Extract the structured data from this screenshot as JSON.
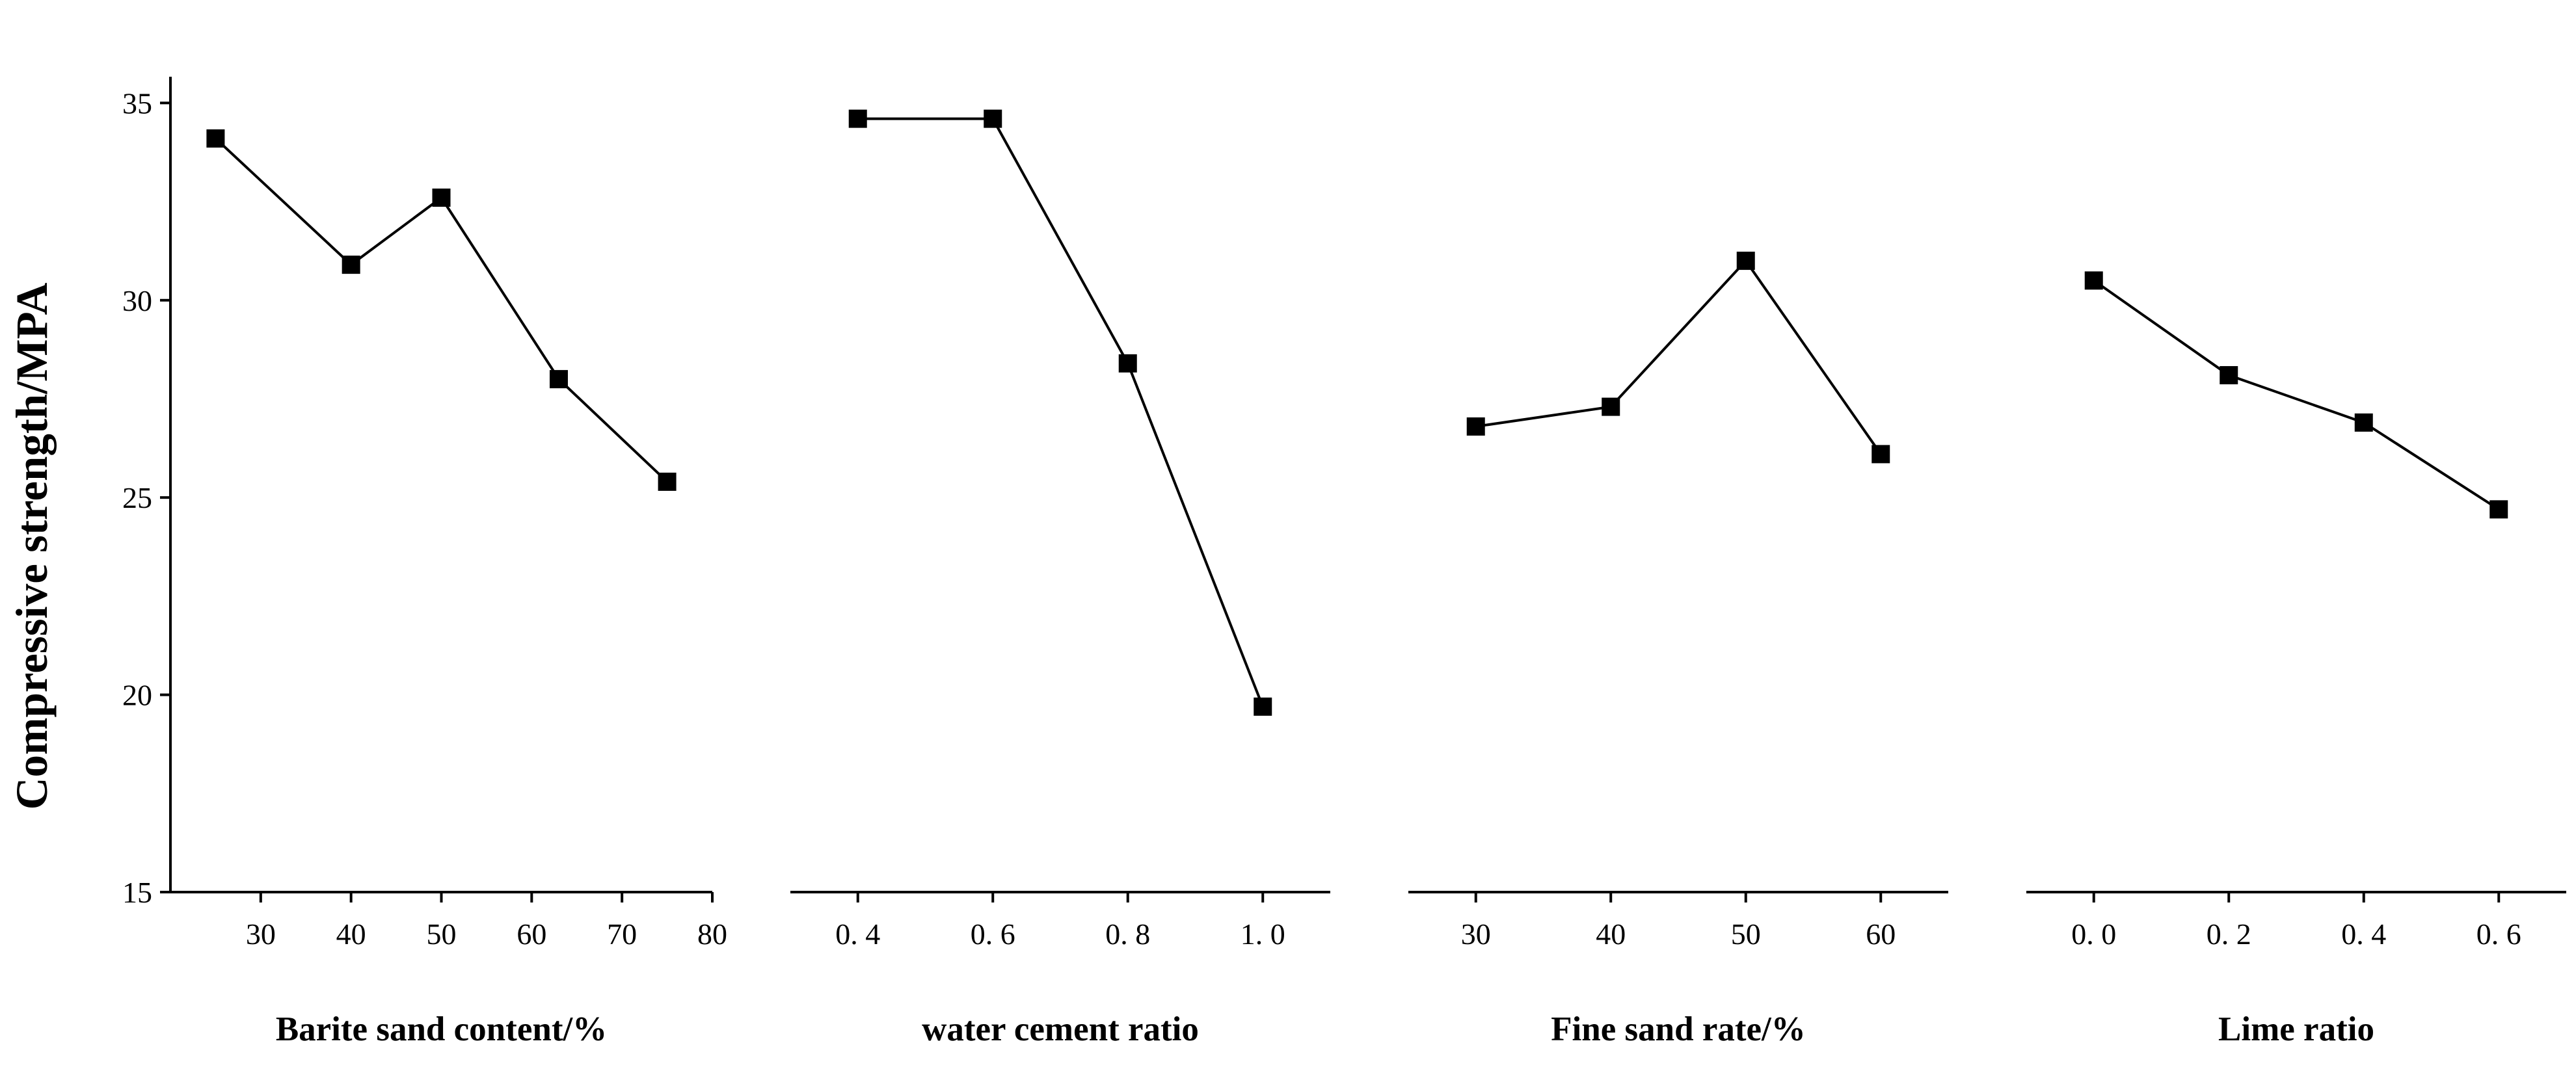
{
  "chart_data": [
    {
      "type": "line",
      "title": "",
      "xlabel": "Barite sand content/%",
      "ylabel": "Compressive strength/MPA",
      "x": [
        25,
        40,
        50,
        63,
        75
      ],
      "values": [
        34.1,
        30.9,
        32.6,
        28.0,
        25.4
      ],
      "xticks": [
        30,
        40,
        50,
        60,
        70,
        80
      ],
      "xtick_labels": [
        "30",
        "40",
        "50",
        "60",
        "70",
        "80"
      ],
      "xlim": [
        20,
        80
      ],
      "yticks": [
        15,
        20,
        25,
        30,
        35
      ],
      "ytick_labels": [
        "15",
        "20",
        "25",
        "30",
        "35"
      ],
      "ylim": [
        15,
        35.5
      ],
      "grid": false,
      "marker": "square"
    },
    {
      "type": "line",
      "title": "",
      "xlabel": "water cement ratio",
      "ylabel": "Compressive strength/MPA",
      "x": [
        0.4,
        0.6,
        0.8,
        1.0
      ],
      "values": [
        34.6,
        34.6,
        28.4,
        19.7
      ],
      "xticks": [
        0.4,
        0.6,
        0.8,
        1.0
      ],
      "xtick_labels": [
        "0. 4",
        "0. 6",
        "0. 8",
        "1. 0"
      ],
      "xlim": [
        0.3,
        1.1
      ],
      "ylim": [
        15,
        35.5
      ],
      "grid": false,
      "marker": "square"
    },
    {
      "type": "line",
      "title": "",
      "xlabel": "Fine sand rate/%",
      "ylabel": "Compressive strength/MPA",
      "x": [
        30,
        40,
        50,
        60
      ],
      "values": [
        26.8,
        27.3,
        31.0,
        26.1
      ],
      "xticks": [
        30,
        40,
        50,
        60
      ],
      "xtick_labels": [
        "30",
        "40",
        "50",
        "60"
      ],
      "xlim": [
        25,
        65
      ],
      "ylim": [
        15,
        35.5
      ],
      "grid": false,
      "marker": "square"
    },
    {
      "type": "line",
      "title": "",
      "xlabel": "Lime ratio",
      "ylabel": "Compressive strength/MPA",
      "x": [
        0.0,
        0.2,
        0.4,
        0.6
      ],
      "values": [
        30.5,
        28.1,
        26.9,
        24.7
      ],
      "xticks": [
        0.0,
        0.2,
        0.4,
        0.6
      ],
      "xtick_labels": [
        "0. 0",
        "0. 2",
        "0. 4",
        "0. 6"
      ],
      "xlim": [
        -0.1,
        0.7
      ],
      "ylim": [
        15,
        35.5
      ],
      "grid": false,
      "marker": "square"
    }
  ]
}
